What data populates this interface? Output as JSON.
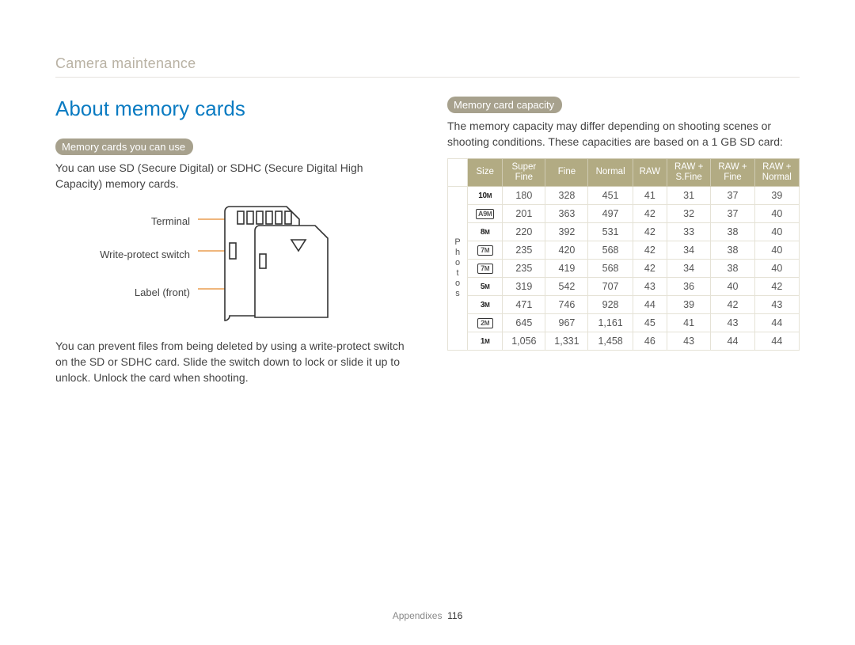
{
  "breadcrumb": "Camera maintenance",
  "title": "About memory cards",
  "left": {
    "pill": "Memory cards you can use",
    "intro": "You can use SD (Secure Digital) or SDHC (Secure Digital High Capacity) memory cards.",
    "labels": {
      "terminal": "Terminal",
      "wps": "Write-protect switch",
      "labelfront": "Label (front)"
    },
    "outro": "You can prevent files from being deleted by using a write-protect switch on the SD or SDHC card. Slide the switch down to lock or slide it up to unlock. Unlock the card when shooting."
  },
  "right": {
    "pill": "Memory card capacity",
    "intro": "The memory capacity may differ depending on shooting scenes or shooting conditions. These capacities are based on a 1 GB SD card:",
    "rowgroup": "Photos",
    "columns": [
      "Size",
      "Super Fine",
      "Fine",
      "Normal",
      "RAW",
      "RAW + S.Fine",
      "RAW + Fine",
      "RAW + Normal"
    ],
    "sizes": [
      "10M",
      "A9M",
      "8M",
      "7M",
      "7M",
      "5M",
      "3M",
      "2M",
      "1M"
    ],
    "size_boxed": [
      false,
      true,
      false,
      true,
      true,
      false,
      false,
      true,
      false
    ],
    "rows": [
      [
        "180",
        "328",
        "451",
        "41",
        "31",
        "37",
        "39"
      ],
      [
        "201",
        "363",
        "497",
        "42",
        "32",
        "37",
        "40"
      ],
      [
        "220",
        "392",
        "531",
        "42",
        "33",
        "38",
        "40"
      ],
      [
        "235",
        "420",
        "568",
        "42",
        "34",
        "38",
        "40"
      ],
      [
        "235",
        "419",
        "568",
        "42",
        "34",
        "38",
        "40"
      ],
      [
        "319",
        "542",
        "707",
        "43",
        "36",
        "40",
        "42"
      ],
      [
        "471",
        "746",
        "928",
        "44",
        "39",
        "42",
        "43"
      ],
      [
        "645",
        "967",
        "1,161",
        "45",
        "41",
        "43",
        "44"
      ],
      [
        "1,056",
        "1,331",
        "1,458",
        "46",
        "43",
        "44",
        "44"
      ]
    ]
  },
  "footer": {
    "section": "Appendixes",
    "page": "116"
  },
  "colors": {
    "accent_blue": "#0a7bc2",
    "pill_bg": "#a7a18d",
    "th_bg": "#b2ab83",
    "leader": "#e58a2e"
  }
}
